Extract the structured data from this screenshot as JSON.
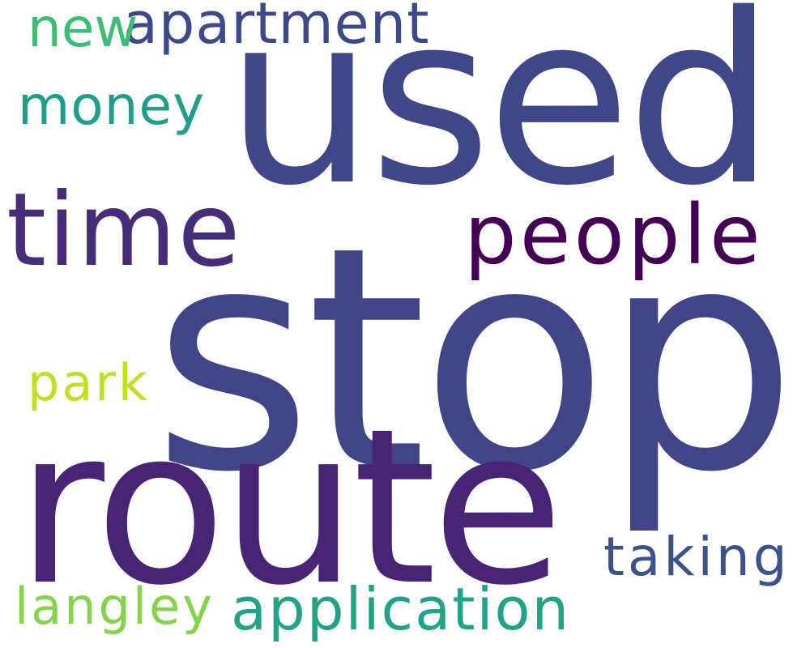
{
  "words": [
    {
      "text": "stop",
      "color": "#414487"
    },
    {
      "text": "used",
      "color": "#3f4788"
    },
    {
      "text": "route",
      "color": "#482475"
    },
    {
      "text": "time",
      "color": "#472c7a"
    },
    {
      "text": "people",
      "color": "#440154"
    },
    {
      "text": "apartment",
      "color": "#3e4989"
    },
    {
      "text": "new",
      "color": "#3fbc73"
    },
    {
      "text": "money",
      "color": "#1f9e89"
    },
    {
      "text": "park",
      "color": "#c2df23"
    },
    {
      "text": "taking",
      "color": "#3b528b"
    },
    {
      "text": "application",
      "color": "#20a386"
    },
    {
      "text": "langley",
      "color": "#84d44b"
    }
  ]
}
